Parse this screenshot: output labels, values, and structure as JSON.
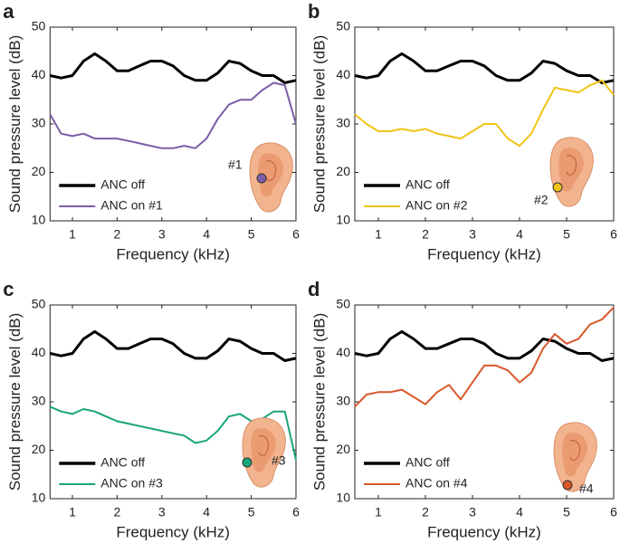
{
  "chart_data": [
    {
      "type": "line",
      "panel_label": "a",
      "xlabel": "Frequency (kHz)",
      "ylabel": "Sound pressure level (dB)",
      "annotation": "#1",
      "legend": "lower left",
      "xlim": [
        0.5,
        6
      ],
      "ylim": [
        10,
        50
      ],
      "xticks": [
        1,
        2,
        3,
        4,
        5,
        6
      ],
      "yticks": [
        10,
        20,
        30,
        40,
        50
      ],
      "x": [
        0.5,
        0.75,
        1,
        1.25,
        1.5,
        1.75,
        2,
        2.25,
        2.5,
        2.75,
        3,
        3.25,
        3.5,
        3.75,
        4,
        4.25,
        4.5,
        4.75,
        5,
        5.25,
        5.5,
        5.75,
        6
      ],
      "series": [
        {
          "name": "ANC off",
          "color": "#000000",
          "values": [
            40,
            39.5,
            40,
            43,
            44.5,
            43,
            41,
            41,
            42,
            43,
            43,
            42,
            40,
            39,
            39,
            40.5,
            43,
            42.5,
            41,
            40,
            40,
            38.5,
            39
          ]
        },
        {
          "name": "ANC on #1",
          "color": "#7b5ea7",
          "values": [
            32,
            28,
            27.5,
            28,
            27,
            27,
            27,
            26.5,
            26,
            25.5,
            25,
            25,
            25.5,
            25,
            27,
            31,
            34,
            35,
            35,
            37,
            38.5,
            38,
            30
          ]
        }
      ]
    },
    {
      "type": "line",
      "panel_label": "b",
      "xlabel": "Frequency (kHz)",
      "ylabel": "Sound pressure level (dB)",
      "annotation": "#2",
      "legend": "lower left",
      "xlim": [
        0.5,
        6
      ],
      "ylim": [
        10,
        50
      ],
      "xticks": [
        1,
        2,
        3,
        4,
        5,
        6
      ],
      "yticks": [
        10,
        20,
        30,
        40,
        50
      ],
      "x": [
        0.5,
        0.75,
        1,
        1.25,
        1.5,
        1.75,
        2,
        2.25,
        2.5,
        2.75,
        3,
        3.25,
        3.5,
        3.75,
        4,
        4.25,
        4.5,
        4.75,
        5,
        5.25,
        5.5,
        5.75,
        6
      ],
      "series": [
        {
          "name": "ANC off",
          "color": "#000000",
          "values": [
            40,
            39.5,
            40,
            43,
            44.5,
            43,
            41,
            41,
            42,
            43,
            43,
            42,
            40,
            39,
            39,
            40.5,
            43,
            42.5,
            41,
            40,
            40,
            38.5,
            39
          ]
        },
        {
          "name": "ANC on #2",
          "color": "#f0c416",
          "values": [
            32,
            30,
            28.5,
            28.5,
            29,
            28.5,
            29,
            28,
            27.5,
            27,
            28.5,
            30,
            30,
            27,
            25.5,
            28,
            33,
            37.5,
            37,
            36.5,
            38,
            39,
            36
          ]
        }
      ]
    },
    {
      "type": "line",
      "panel_label": "c",
      "xlabel": "Frequency (kHz)",
      "ylabel": "Sound pressure level (dB)",
      "annotation": "#3",
      "legend": "lower left",
      "xlim": [
        0.5,
        6
      ],
      "ylim": [
        10,
        50
      ],
      "xticks": [
        1,
        2,
        3,
        4,
        5,
        6
      ],
      "yticks": [
        10,
        20,
        30,
        40,
        50
      ],
      "x": [
        0.5,
        0.75,
        1,
        1.25,
        1.5,
        1.75,
        2,
        2.25,
        2.5,
        2.75,
        3,
        3.25,
        3.5,
        3.75,
        4,
        4.25,
        4.5,
        4.75,
        5,
        5.25,
        5.5,
        5.75,
        6
      ],
      "series": [
        {
          "name": "ANC off",
          "color": "#000000",
          "values": [
            40,
            39.5,
            40,
            43,
            44.5,
            43,
            41,
            41,
            42,
            43,
            43,
            42,
            40,
            39,
            39,
            40.5,
            43,
            42.5,
            41,
            40,
            40,
            38.5,
            39
          ]
        },
        {
          "name": "ANC on #3",
          "color": "#1aa57a",
          "values": [
            29,
            28,
            27.5,
            28.5,
            28,
            27,
            26,
            25.5,
            25,
            24.5,
            24,
            23.5,
            23,
            21.5,
            22,
            24,
            27,
            27.5,
            26,
            26.5,
            28,
            28,
            18
          ]
        }
      ]
    },
    {
      "type": "line",
      "panel_label": "d",
      "xlabel": "Frequency (kHz)",
      "ylabel": "Sound pressure level (dB)",
      "annotation": "#4",
      "legend": "lower left",
      "xlim": [
        0.5,
        6
      ],
      "ylim": [
        10,
        50
      ],
      "xticks": [
        1,
        2,
        3,
        4,
        5,
        6
      ],
      "yticks": [
        10,
        20,
        30,
        40,
        50
      ],
      "x": [
        0.5,
        0.75,
        1,
        1.25,
        1.5,
        1.75,
        2,
        2.25,
        2.5,
        2.75,
        3,
        3.25,
        3.5,
        3.75,
        4,
        4.25,
        4.5,
        4.75,
        5,
        5.25,
        5.5,
        5.75,
        6
      ],
      "series": [
        {
          "name": "ANC off",
          "color": "#000000",
          "values": [
            40,
            39.5,
            40,
            43,
            44.5,
            43,
            41,
            41,
            42,
            43,
            43,
            42,
            40,
            39,
            39,
            40.5,
            43,
            42.5,
            41,
            40,
            40,
            38.5,
            39
          ]
        },
        {
          "name": "ANC on #4",
          "color": "#d9572a",
          "values": [
            29,
            31.5,
            32,
            32,
            32.5,
            31,
            29.5,
            32,
            33.5,
            30.5,
            34,
            37.5,
            37.5,
            36.5,
            34,
            36,
            41,
            44,
            42,
            43,
            46,
            47,
            49.5
          ]
        }
      ]
    }
  ]
}
